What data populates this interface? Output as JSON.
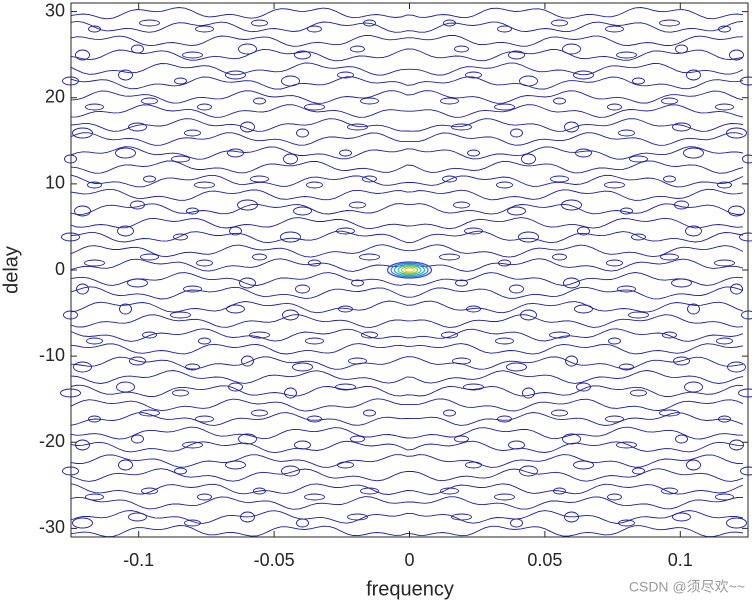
{
  "chart_data": {
    "type": "contour",
    "xlabel": "frequency",
    "ylabel": "delay",
    "xlim": [
      -0.125,
      0.125
    ],
    "ylim": [
      -31,
      31
    ],
    "xticks": [
      -0.1,
      -0.05,
      0,
      0.05,
      0.1
    ],
    "yticks": [
      -30,
      -20,
      -10,
      0,
      10,
      20,
      30
    ],
    "color": "#1f1fa0"
  },
  "watermark": "CSDN @须尽欢~~"
}
